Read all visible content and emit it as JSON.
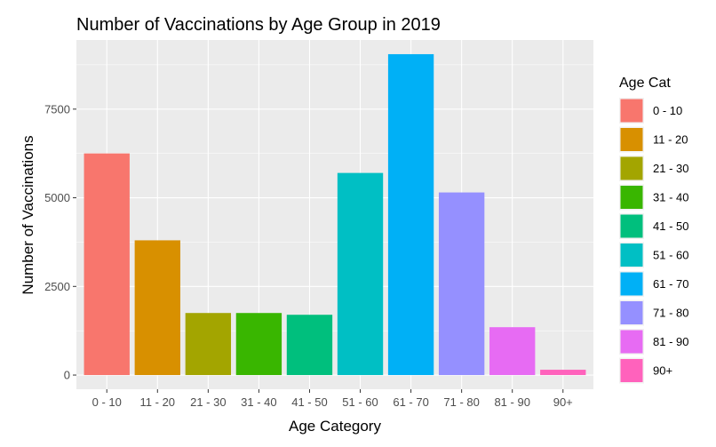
{
  "chart_data": {
    "type": "bar",
    "title": "Number of Vaccinations by Age Group in 2019",
    "xlabel": "Age Category",
    "ylabel": "Number of Vaccinations",
    "categories": [
      "0 - 10",
      "11 - 20",
      "21 - 30",
      "31 - 40",
      "41 - 50",
      "51 - 60",
      "61 - 70",
      "71 - 80",
      "81 - 90",
      "90+"
    ],
    "values": [
      6250,
      3800,
      1750,
      1750,
      1700,
      5700,
      9050,
      5150,
      1350,
      150
    ],
    "colors": [
      "#F8766D",
      "#D89000",
      "#A3A500",
      "#39B600",
      "#00BF7D",
      "#00BFC4",
      "#00B0F6",
      "#9590FF",
      "#E76BF3",
      "#FF62BC"
    ],
    "ylim": [
      -400,
      9450
    ],
    "yticks": [
      0,
      2500,
      5000,
      7500
    ],
    "ytick_labels": [
      "0",
      "2500",
      "5000",
      "7500"
    ],
    "grid": true,
    "panel_background": "#EBEBEB",
    "legend": {
      "title": "Age Cat",
      "position": "right",
      "entries": [
        "0 - 10",
        "11 - 20",
        "21 - 30",
        "31 - 40",
        "41 - 50",
        "51 - 60",
        "61 - 70",
        "71 - 80",
        "81 - 90",
        "90+"
      ]
    }
  }
}
